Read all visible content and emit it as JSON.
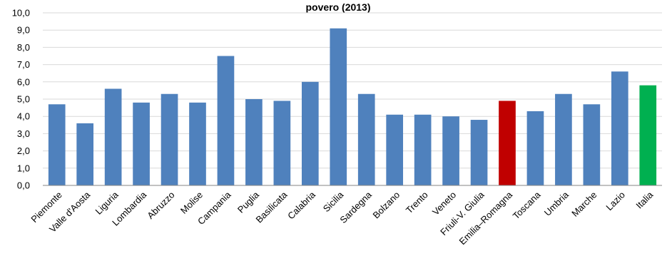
{
  "chart_data": {
    "type": "bar",
    "title": "povero (2013)",
    "xlabel": "",
    "ylabel": "",
    "ylim": [
      0,
      10
    ],
    "yticks": [
      "0,0",
      "1,0",
      "2,0",
      "3,0",
      "4,0",
      "5,0",
      "6,0",
      "7,0",
      "8,0",
      "9,0",
      "10,0"
    ],
    "grid": true,
    "legend": "none",
    "categories": [
      "Piemonte",
      "Valle d'Aosta",
      "Liguria",
      "Lombardia",
      "Abruzzo",
      "Molise",
      "Campania",
      "Puglia",
      "Basilicata",
      "Calabria",
      "Sicilia",
      "Sardegna",
      "Bolzano",
      "Trento",
      "Veneto",
      "Friuli-V. Giulia",
      "Emilia–Romagna",
      "Toscana",
      "Umbria",
      "Marche",
      "Lazio",
      "Italia"
    ],
    "values": [
      4.7,
      3.6,
      5.6,
      4.8,
      5.3,
      4.8,
      7.5,
      5.0,
      4.9,
      6.0,
      9.1,
      5.3,
      4.1,
      4.1,
      4.0,
      3.8,
      4.9,
      4.3,
      5.3,
      4.7,
      6.6,
      5.8
    ],
    "colors": {
      "default": "#4F81BD",
      "highlight": "#C00000",
      "total": "#00B050",
      "grid": "#D9D9D9",
      "axis": "#868686"
    },
    "highlight_index": 16,
    "total_index": 21
  }
}
